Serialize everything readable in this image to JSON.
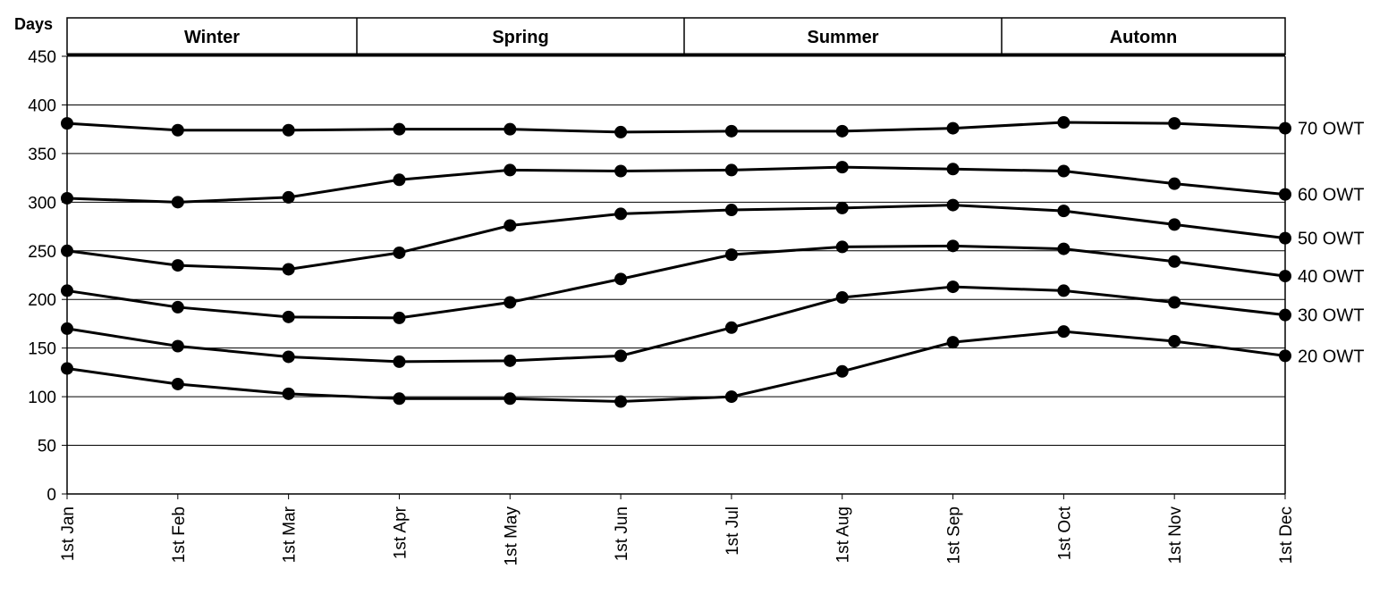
{
  "chart_data": {
    "type": "line",
    "ylabel": "Days",
    "ylim": [
      0,
      450
    ],
    "yticks": [
      0,
      50,
      100,
      150,
      200,
      250,
      300,
      350,
      400,
      450
    ],
    "grid": "horizontal",
    "categories": [
      "1st Jan",
      "1st Feb",
      "1st Mar",
      "1st Apr",
      "1st May",
      "1st Jun",
      "1st Jul",
      "1st Aug",
      "1st Sep",
      "1st Oct",
      "1st Nov",
      "1st Dec"
    ],
    "seasons": [
      {
        "label": "Winter",
        "from": "1st Jan",
        "to": "mid Mar"
      },
      {
        "label": "Spring",
        "from": "mid Mar",
        "to": "mid Jun"
      },
      {
        "label": "Summer",
        "from": "mid Jun",
        "to": "mid Sep"
      },
      {
        "label": "Automn",
        "from": "mid Sep",
        "to": "1st Dec"
      }
    ],
    "series": [
      {
        "name": "70 OWT",
        "values": [
          381,
          374,
          374,
          375,
          375,
          372,
          373,
          373,
          376,
          382,
          381,
          376
        ]
      },
      {
        "name": "60 OWT",
        "values": [
          304,
          300,
          305,
          323,
          333,
          332,
          333,
          336,
          334,
          332,
          319,
          308
        ]
      },
      {
        "name": "50 OWT",
        "values": [
          250,
          235,
          231,
          248,
          276,
          288,
          292,
          294,
          297,
          291,
          277,
          263
        ]
      },
      {
        "name": "40 OWT",
        "values": [
          209,
          192,
          182,
          181,
          197,
          221,
          246,
          254,
          255,
          252,
          239,
          224
        ]
      },
      {
        "name": "30 OWT",
        "values": [
          170,
          152,
          141,
          136,
          137,
          142,
          171,
          202,
          213,
          209,
          197,
          184
        ]
      },
      {
        "name": "20 OWT",
        "values": [
          129,
          113,
          103,
          98,
          98,
          95,
          100,
          126,
          156,
          167,
          157,
          142
        ]
      }
    ],
    "colors": {
      "line": "#000000",
      "grid": "#000000",
      "marker": "#000000"
    }
  }
}
